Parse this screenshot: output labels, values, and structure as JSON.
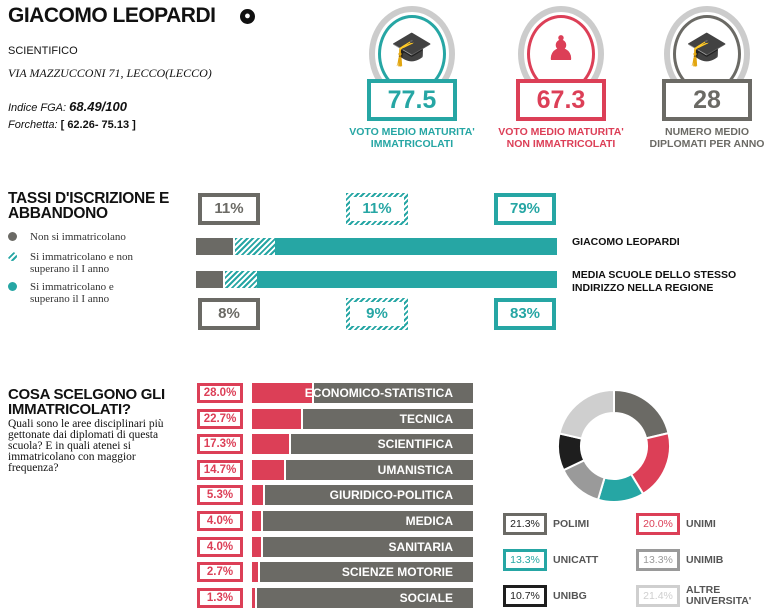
{
  "school": {
    "name": "GIACOMO LEOPARDI",
    "type": "SCIENTIFICO",
    "address": "VIA MAZZUCCONI 71, LECCO(LECCO)",
    "fga_label": "Indice FGA:",
    "fga_value": "68.49/100",
    "range_label": "Forchetta:",
    "range_value": "[ 62.26- 75.13 ]"
  },
  "stats": [
    {
      "value": "77.5",
      "label": "VOTO MEDIO MATURITA' IMMATRICOLATI",
      "color": "#26a6a4",
      "icon": "graduation-cap-icon"
    },
    {
      "value": "67.3",
      "label": "VOTO MEDIO MATURITA' NON IMMATRICOLATI",
      "color": "#dc3f57",
      "icon": "person-icon"
    },
    {
      "value": "28",
      "label": "NUMERO MEDIO DIPLOMATI PER ANNO",
      "color": "#6b6a65",
      "icon": "graduate-icon"
    }
  ],
  "tassi": {
    "title": "TASSI D'ISCRIZIONE E ABBANDONO",
    "legend": [
      "Non si immatricolano",
      "Si immatricolano e non superano il I anno",
      "Si immatricolano e superano il I anno"
    ],
    "school": {
      "label": "GIACOMO LEOPARDI",
      "values": [
        "11%",
        "11%",
        "79%"
      ],
      "fractions": [
        11,
        11,
        79
      ]
    },
    "region": {
      "label": "MEDIA SCUOLE DELLO STESSO INDIRIZZO NELLA REGIONE",
      "values": [
        "8%",
        "9%",
        "83%"
      ],
      "fractions": [
        8,
        9,
        83
      ]
    }
  },
  "scelte": {
    "title": "COSA SCELGONO GLI IMMATRICOLATI?",
    "desc": "Quali sono le aree disciplinari più gettonate dai diplomati di questa scuola? E in quali atenei si immatricolano con maggior frequenza?",
    "areas": [
      {
        "pct": "28.0%",
        "value": 28.0,
        "label": "ECONOMICO-STATISTICA"
      },
      {
        "pct": "22.7%",
        "value": 22.7,
        "label": "TECNICA"
      },
      {
        "pct": "17.3%",
        "value": 17.3,
        "label": "SCIENTIFICA"
      },
      {
        "pct": "14.7%",
        "value": 14.7,
        "label": "UMANISTICA"
      },
      {
        "pct": "5.3%",
        "value": 5.3,
        "label": "GIURIDICO-POLITICA"
      },
      {
        "pct": "4.0%",
        "value": 4.0,
        "label": "MEDICA"
      },
      {
        "pct": "4.0%",
        "value": 4.0,
        "label": "SANITARIA"
      },
      {
        "pct": "2.7%",
        "value": 2.7,
        "label": "SCIENZE MOTORIE"
      },
      {
        "pct": "1.3%",
        "value": 1.3,
        "label": "SOCIALE"
      }
    ],
    "universities": [
      {
        "pct": "21.3%",
        "value": 21.3,
        "label": "POLIMI",
        "color": "#6b6a65"
      },
      {
        "pct": "20.0%",
        "value": 20.0,
        "label": "UNIMI",
        "color": "#dc3f57"
      },
      {
        "pct": "13.3%",
        "value": 13.3,
        "label": "UNICATT",
        "color": "#26a6a4"
      },
      {
        "pct": "13.3%",
        "value": 13.3,
        "label": "UNIMIB",
        "color": "#9a9a9a"
      },
      {
        "pct": "10.7%",
        "value": 10.7,
        "label": "UNIBG",
        "color": "#1e1e1e"
      },
      {
        "pct": "21.4%",
        "value": 21.4,
        "label": "ALTRE UNIVERSITA'",
        "color": "#cfcfcf"
      }
    ]
  }
}
